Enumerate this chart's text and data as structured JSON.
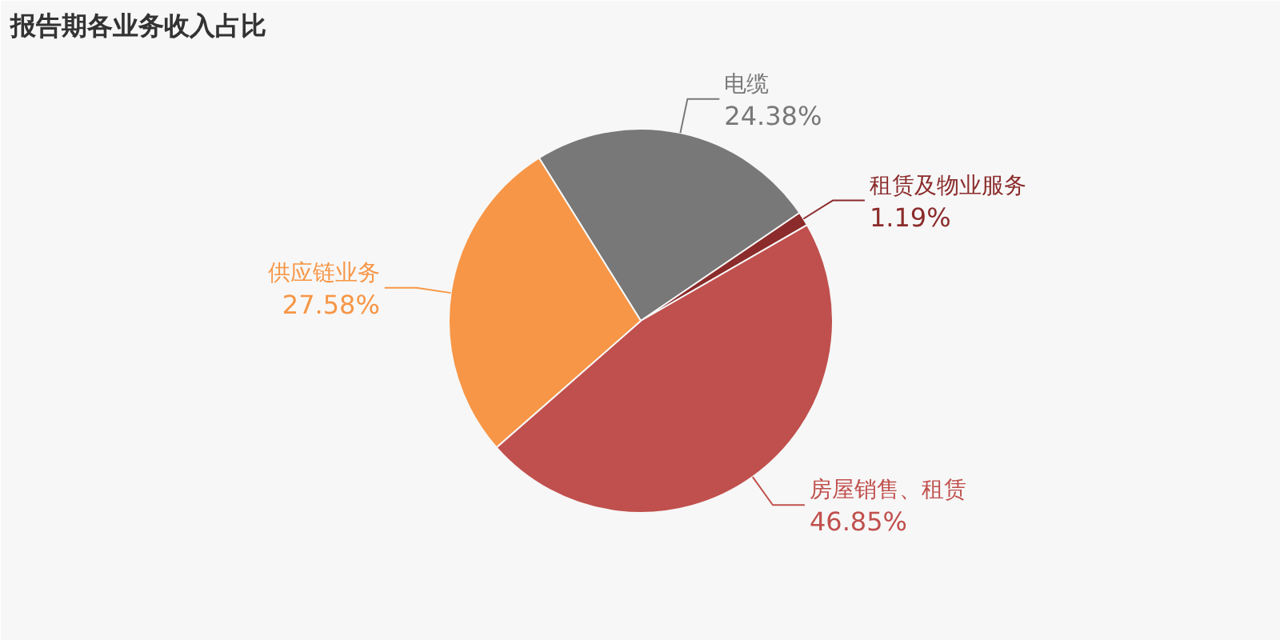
{
  "chart_data": {
    "type": "pie",
    "title": "报告期各业务收入占比",
    "categories": [
      "电缆",
      "租赁及物业服务",
      "房屋销售、租赁",
      "供应链业务"
    ],
    "values": [
      24.38,
      1.19,
      46.85,
      27.58
    ],
    "value_labels": [
      "24.38%",
      "1.19%",
      "46.85%",
      "27.58%"
    ],
    "colors": [
      "#787878",
      "#8b2b2b",
      "#c0504d",
      "#f79646"
    ]
  }
}
